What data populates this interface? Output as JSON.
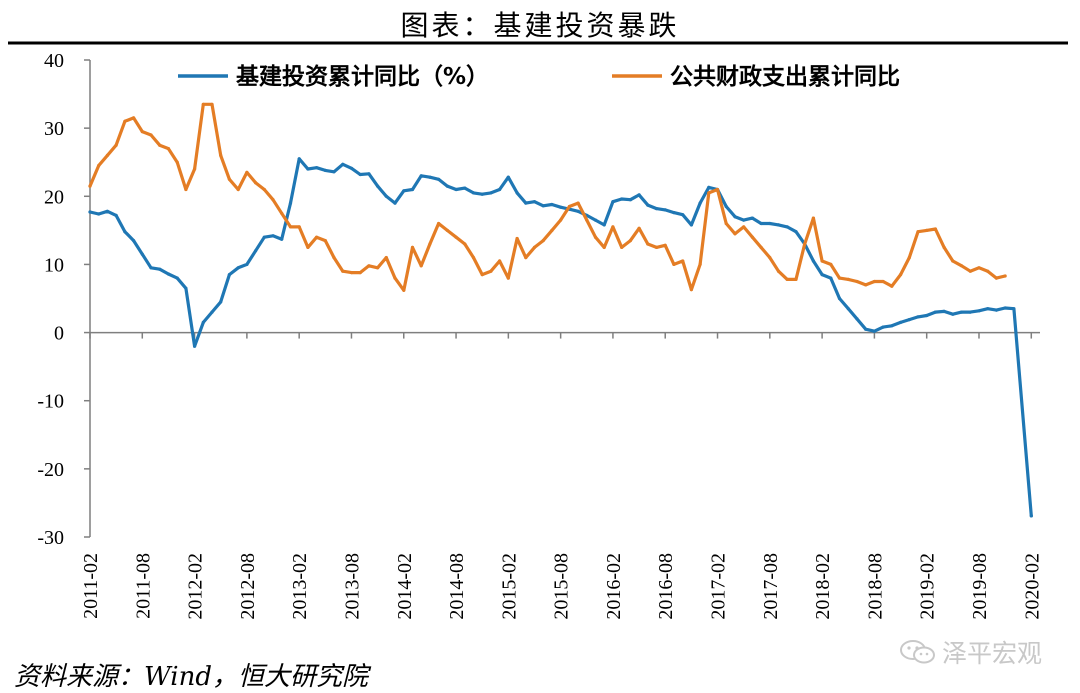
{
  "title": "图表：基建投资暴跌",
  "source": "资料来源：Wind，恒大研究院",
  "watermark": "泽平宏观",
  "watermark_icon": "wechat-icon",
  "colors": {
    "series1": "#1f77b4",
    "series2": "#e47d25",
    "rule": "#000000",
    "axis": "#7f7f7f"
  },
  "chart_data": {
    "type": "line",
    "ylim": [
      -30,
      40
    ],
    "yticks": [
      -30,
      -20,
      -10,
      0,
      10,
      20,
      30,
      40
    ],
    "xticks": [
      "2011-02",
      "2011-08",
      "2012-02",
      "2012-08",
      "2013-02",
      "2013-08",
      "2014-02",
      "2014-08",
      "2015-02",
      "2015-08",
      "2016-02",
      "2016-08",
      "2017-02",
      "2017-08",
      "2018-02",
      "2018-08",
      "2019-02",
      "2019-08",
      "2020-02"
    ],
    "grid": false,
    "legend_position": "top",
    "series": [
      {
        "name": "基建投资累计同比（%）",
        "color": "#1f77b4",
        "points": [
          [
            "2011-02",
            17.7
          ],
          [
            "2011-03",
            17.4
          ],
          [
            "2011-04",
            17.8
          ],
          [
            "2011-05",
            17.2
          ],
          [
            "2011-06",
            14.8
          ],
          [
            "2011-07",
            13.5
          ],
          [
            "2011-08",
            11.5
          ],
          [
            "2011-09",
            9.5
          ],
          [
            "2011-10",
            9.3
          ],
          [
            "2011-11",
            8.6
          ],
          [
            "2011-12",
            8.0
          ],
          [
            "2012-01",
            6.5
          ],
          [
            "2012-02",
            -2.0
          ],
          [
            "2012-03",
            1.5
          ],
          [
            "2012-04",
            3.0
          ],
          [
            "2012-05",
            4.5
          ],
          [
            "2012-06",
            8.5
          ],
          [
            "2012-07",
            9.5
          ],
          [
            "2012-08",
            10.0
          ],
          [
            "2012-09",
            12.0
          ],
          [
            "2012-10",
            14.0
          ],
          [
            "2012-11",
            14.2
          ],
          [
            "2012-12",
            13.7
          ],
          [
            "2013-01",
            19.0
          ],
          [
            "2013-02",
            25.5
          ],
          [
            "2013-03",
            24.0
          ],
          [
            "2013-04",
            24.2
          ],
          [
            "2013-05",
            23.8
          ],
          [
            "2013-06",
            23.6
          ],
          [
            "2013-07",
            24.7
          ],
          [
            "2013-08",
            24.1
          ],
          [
            "2013-09",
            23.2
          ],
          [
            "2013-10",
            23.3
          ],
          [
            "2013-11",
            21.5
          ],
          [
            "2013-12",
            20.0
          ],
          [
            "2014-01",
            19.0
          ],
          [
            "2014-02",
            20.8
          ],
          [
            "2014-03",
            21.0
          ],
          [
            "2014-04",
            23.0
          ],
          [
            "2014-05",
            22.8
          ],
          [
            "2014-06",
            22.5
          ],
          [
            "2014-07",
            21.5
          ],
          [
            "2014-08",
            21.0
          ],
          [
            "2014-09",
            21.2
          ],
          [
            "2014-10",
            20.5
          ],
          [
            "2014-11",
            20.3
          ],
          [
            "2014-12",
            20.5
          ],
          [
            "2015-01",
            21.0
          ],
          [
            "2015-02",
            22.8
          ],
          [
            "2015-03",
            20.5
          ],
          [
            "2015-04",
            19.0
          ],
          [
            "2015-05",
            19.2
          ],
          [
            "2015-06",
            18.6
          ],
          [
            "2015-07",
            18.8
          ],
          [
            "2015-08",
            18.4
          ],
          [
            "2015-09",
            18.1
          ],
          [
            "2015-10",
            17.8
          ],
          [
            "2015-11",
            17.2
          ],
          [
            "2015-12",
            16.5
          ],
          [
            "2016-01",
            15.8
          ],
          [
            "2016-02",
            19.2
          ],
          [
            "2016-03",
            19.6
          ],
          [
            "2016-04",
            19.5
          ],
          [
            "2016-05",
            20.2
          ],
          [
            "2016-06",
            18.7
          ],
          [
            "2016-07",
            18.2
          ],
          [
            "2016-08",
            18.0
          ],
          [
            "2016-09",
            17.6
          ],
          [
            "2016-10",
            17.3
          ],
          [
            "2016-11",
            15.8
          ],
          [
            "2016-12",
            19.0
          ],
          [
            "2017-01",
            21.3
          ],
          [
            "2017-02",
            21.0
          ],
          [
            "2017-03",
            18.5
          ],
          [
            "2017-04",
            17.0
          ],
          [
            "2017-05",
            16.5
          ],
          [
            "2017-06",
            16.8
          ],
          [
            "2017-07",
            16.0
          ],
          [
            "2017-08",
            16.0
          ],
          [
            "2017-09",
            15.8
          ],
          [
            "2017-10",
            15.5
          ],
          [
            "2017-11",
            14.8
          ],
          [
            "2017-12",
            13.0
          ],
          [
            "2018-01",
            10.5
          ],
          [
            "2018-02",
            8.5
          ],
          [
            "2018-03",
            8.0
          ],
          [
            "2018-04",
            5.0
          ],
          [
            "2018-05",
            3.5
          ],
          [
            "2018-06",
            2.0
          ],
          [
            "2018-07",
            0.5
          ],
          [
            "2018-08",
            0.2
          ],
          [
            "2018-09",
            0.8
          ],
          [
            "2018-10",
            1.0
          ],
          [
            "2018-11",
            1.5
          ],
          [
            "2018-12",
            1.9
          ],
          [
            "2019-01",
            2.3
          ],
          [
            "2019-02",
            2.5
          ],
          [
            "2019-03",
            3.0
          ],
          [
            "2019-04",
            3.1
          ],
          [
            "2019-05",
            2.7
          ],
          [
            "2019-06",
            3.0
          ],
          [
            "2019-07",
            3.0
          ],
          [
            "2019-08",
            3.2
          ],
          [
            "2019-09",
            3.5
          ],
          [
            "2019-10",
            3.3
          ],
          [
            "2019-11",
            3.6
          ],
          [
            "2019-12",
            3.5
          ],
          [
            "2020-02",
            -26.9
          ]
        ]
      },
      {
        "name": "公共财政支出累计同比",
        "color": "#e47d25",
        "points": [
          [
            "2011-02",
            21.5
          ],
          [
            "2011-03",
            24.5
          ],
          [
            "2011-04",
            26.0
          ],
          [
            "2011-05",
            27.5
          ],
          [
            "2011-06",
            31.0
          ],
          [
            "2011-07",
            31.5
          ],
          [
            "2011-08",
            29.5
          ],
          [
            "2011-09",
            29.0
          ],
          [
            "2011-10",
            27.5
          ],
          [
            "2011-11",
            27.0
          ],
          [
            "2011-12",
            25.0
          ],
          [
            "2012-01",
            21.0
          ],
          [
            "2012-02",
            24.0
          ],
          [
            "2012-03",
            33.5
          ],
          [
            "2012-04",
            33.5
          ],
          [
            "2012-05",
            26.0
          ],
          [
            "2012-06",
            22.5
          ],
          [
            "2012-07",
            21.0
          ],
          [
            "2012-08",
            23.5
          ],
          [
            "2012-09",
            22.0
          ],
          [
            "2012-10",
            21.0
          ],
          [
            "2012-11",
            19.5
          ],
          [
            "2012-12",
            17.5
          ],
          [
            "2013-01",
            15.5
          ],
          [
            "2013-02",
            15.5
          ],
          [
            "2013-03",
            12.5
          ],
          [
            "2013-04",
            14.0
          ],
          [
            "2013-05",
            13.5
          ],
          [
            "2013-06",
            11.0
          ],
          [
            "2013-07",
            9.0
          ],
          [
            "2013-08",
            8.8
          ],
          [
            "2013-09",
            8.8
          ],
          [
            "2013-10",
            9.8
          ],
          [
            "2013-11",
            9.5
          ],
          [
            "2013-12",
            11.0
          ],
          [
            "2014-01",
            8.0
          ],
          [
            "2014-02",
            6.2
          ],
          [
            "2014-03",
            12.5
          ],
          [
            "2014-04",
            9.8
          ],
          [
            "2014-05",
            13.0
          ],
          [
            "2014-06",
            16.0
          ],
          [
            "2014-07",
            15.0
          ],
          [
            "2014-08",
            14.0
          ],
          [
            "2014-09",
            13.0
          ],
          [
            "2014-10",
            11.0
          ],
          [
            "2014-11",
            8.5
          ],
          [
            "2014-12",
            9.0
          ],
          [
            "2015-01",
            10.5
          ],
          [
            "2015-02",
            8.0
          ],
          [
            "2015-03",
            13.8
          ],
          [
            "2015-04",
            11.0
          ],
          [
            "2015-05",
            12.5
          ],
          [
            "2015-06",
            13.5
          ],
          [
            "2015-07",
            15.0
          ],
          [
            "2015-08",
            16.5
          ],
          [
            "2015-09",
            18.5
          ],
          [
            "2015-10",
            19.0
          ],
          [
            "2015-11",
            16.5
          ],
          [
            "2015-12",
            14.0
          ],
          [
            "2016-01",
            12.5
          ],
          [
            "2016-02",
            15.5
          ],
          [
            "2016-03",
            12.5
          ],
          [
            "2016-04",
            13.5
          ],
          [
            "2016-05",
            15.3
          ],
          [
            "2016-06",
            13.0
          ],
          [
            "2016-07",
            12.5
          ],
          [
            "2016-08",
            12.8
          ],
          [
            "2016-09",
            10.0
          ],
          [
            "2016-10",
            10.5
          ],
          [
            "2016-11",
            6.3
          ],
          [
            "2016-12",
            10.0
          ],
          [
            "2017-01",
            20.5
          ],
          [
            "2017-02",
            21.0
          ],
          [
            "2017-03",
            16.0
          ],
          [
            "2017-04",
            14.5
          ],
          [
            "2017-05",
            15.5
          ],
          [
            "2017-06",
            14.0
          ],
          [
            "2017-07",
            12.5
          ],
          [
            "2017-08",
            11.0
          ],
          [
            "2017-09",
            9.0
          ],
          [
            "2017-10",
            7.8
          ],
          [
            "2017-11",
            7.8
          ],
          [
            "2017-12",
            13.0
          ],
          [
            "2018-01",
            16.8
          ],
          [
            "2018-02",
            10.5
          ],
          [
            "2018-03",
            10.0
          ],
          [
            "2018-04",
            8.0
          ],
          [
            "2018-05",
            7.8
          ],
          [
            "2018-06",
            7.5
          ],
          [
            "2018-07",
            7.0
          ],
          [
            "2018-08",
            7.5
          ],
          [
            "2018-09",
            7.5
          ],
          [
            "2018-10",
            6.8
          ],
          [
            "2018-11",
            8.5
          ],
          [
            "2018-12",
            11.0
          ],
          [
            "2019-01",
            14.8
          ],
          [
            "2019-02",
            15.0
          ],
          [
            "2019-03",
            15.2
          ],
          [
            "2019-04",
            12.5
          ],
          [
            "2019-05",
            10.5
          ],
          [
            "2019-06",
            9.8
          ],
          [
            "2019-07",
            9.0
          ],
          [
            "2019-08",
            9.5
          ],
          [
            "2019-09",
            9.0
          ],
          [
            "2019-10",
            8.0
          ],
          [
            "2019-11",
            8.3
          ]
        ]
      }
    ]
  }
}
